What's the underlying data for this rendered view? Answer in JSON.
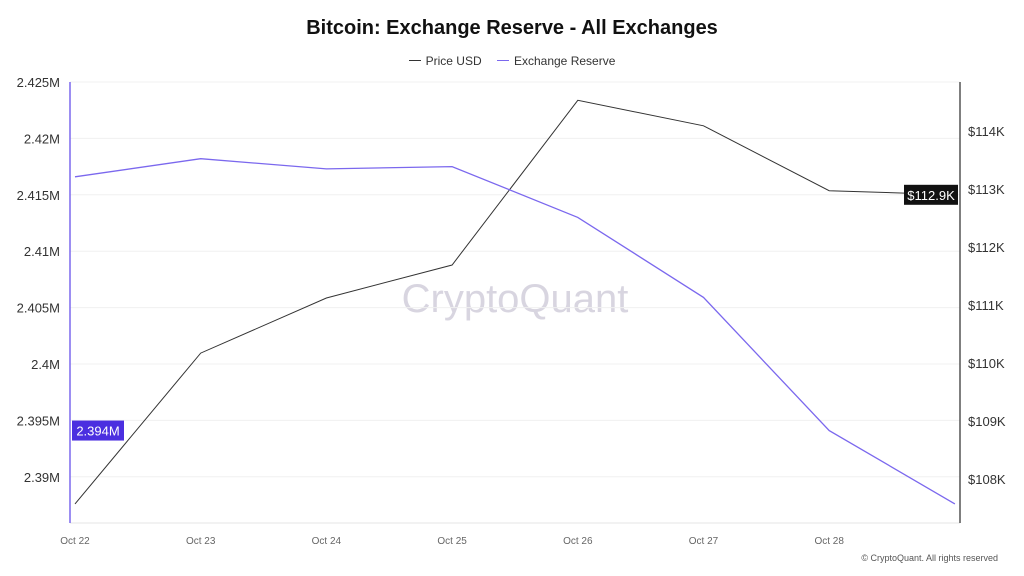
{
  "chart_data": {
    "type": "line",
    "title": "Bitcoin: Exchange Reserve - All Exchanges",
    "legend_position": "top",
    "grid": true,
    "categories": [
      "Oct 22",
      "Oct 23",
      "Oct 24",
      "Oct 25",
      "Oct 26",
      "Oct 27",
      "Oct 28",
      ""
    ],
    "series": [
      {
        "name": "Price USD",
        "axis": "right",
        "color": "#333333",
        "values": [
          107570,
          110170,
          111120,
          111690,
          114530,
          114090,
          112970,
          112900
        ]
      },
      {
        "name": "Exchange Reserve",
        "axis": "left",
        "color": "#7b68ee",
        "values": [
          2.4166,
          2.4182,
          2.4173,
          2.4175,
          2.413,
          2.4059,
          2.3941,
          2.3876
        ]
      }
    ],
    "left_axis": {
      "ylim": [
        2.3855,
        2.425
      ],
      "ticks": [
        2.39,
        2.395,
        2.4,
        2.405,
        2.41,
        2.415,
        2.42,
        2.425
      ],
      "tick_labels": [
        "2.39M",
        "2.395M",
        "2.4M",
        "2.405M",
        "2.41M",
        "2.415M",
        "2.42M",
        "2.425M"
      ],
      "current_label": "2.394M",
      "current_value": 2.3941,
      "label_color": "#4b2fe0"
    },
    "right_axis": {
      "ticks": [
        108000,
        109000,
        110000,
        111000,
        112000,
        113000,
        114000
      ],
      "tick_labels": [
        "$108K",
        "$109K",
        "$110K",
        "$111K",
        "$112K",
        "$113K",
        "$114K"
      ],
      "current_label": "$112.9K",
      "current_value": 112900,
      "label_color": "#111111"
    },
    "watermark": "CryptoQuant"
  },
  "footer": "© CryptoQuant. All rights reserved"
}
